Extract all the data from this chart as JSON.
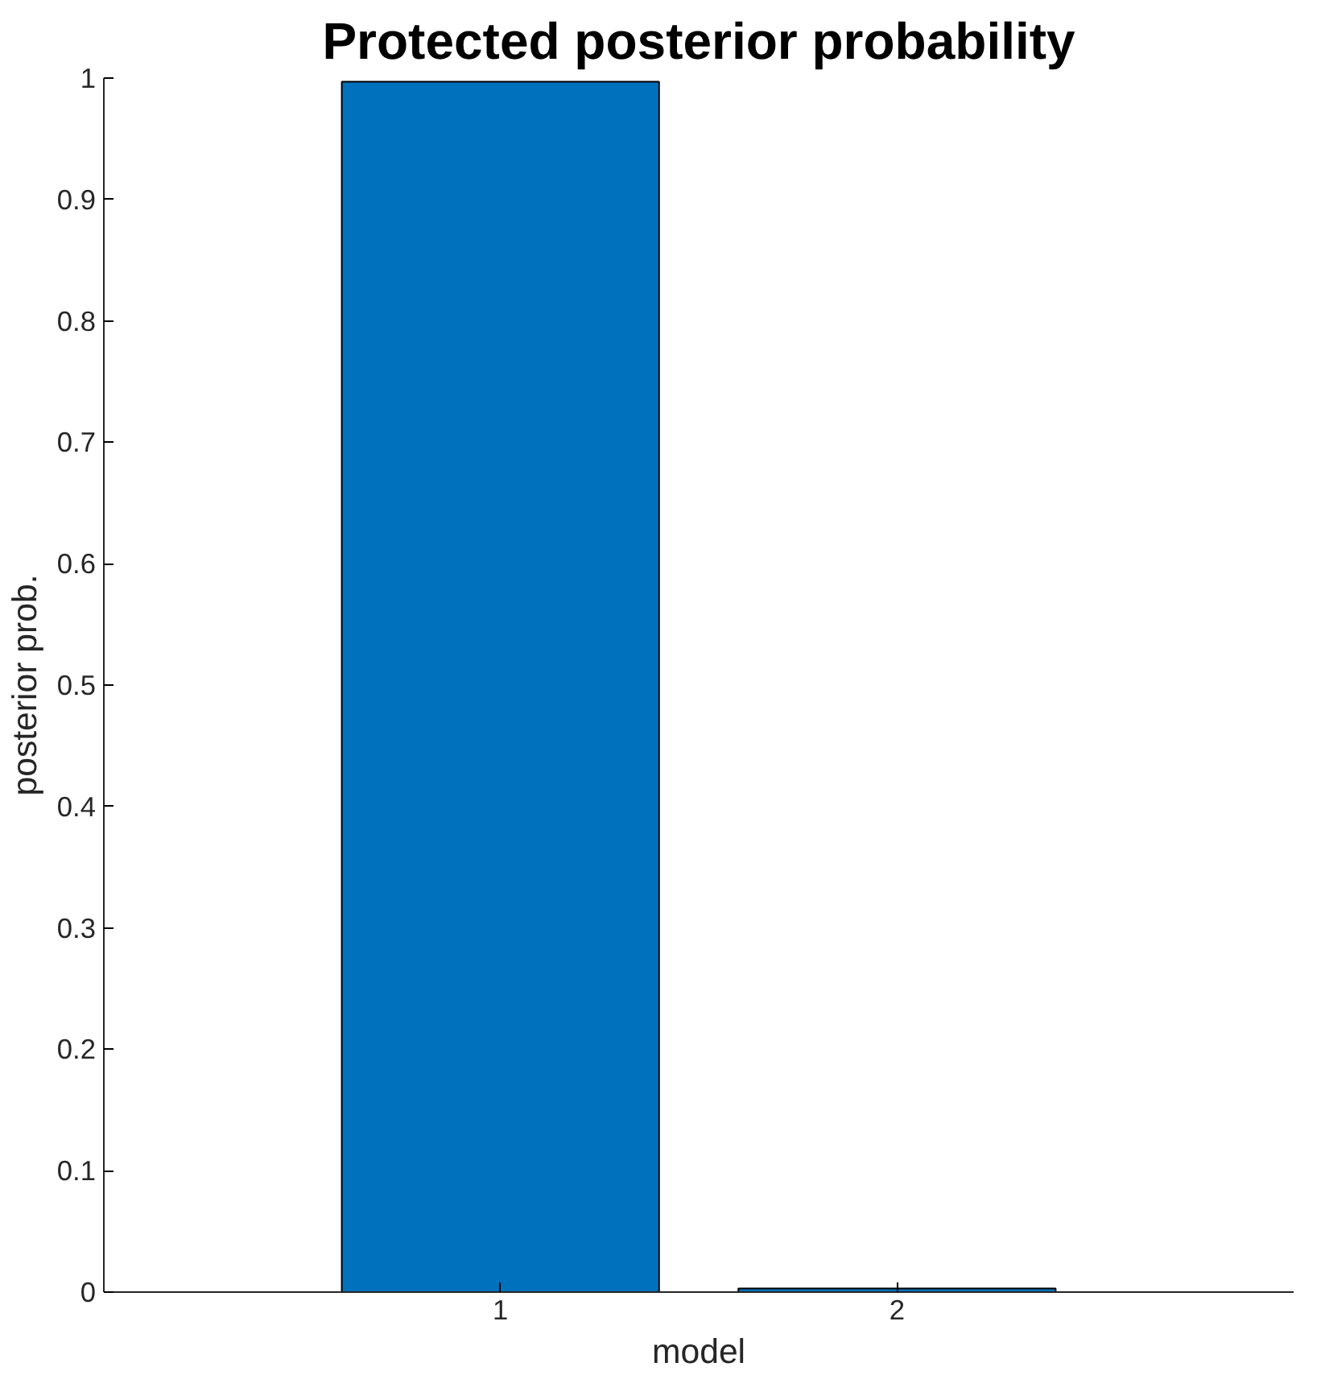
{
  "chart_data": {
    "type": "bar",
    "title": "Protected posterior probability",
    "xlabel": "model",
    "ylabel": "posterior prob.",
    "categories": [
      "1",
      "2"
    ],
    "values": [
      0.997,
      0.003
    ],
    "color": "#0072bd",
    "ylim": [
      0,
      1
    ],
    "yticks": [
      0,
      0.1,
      0.2,
      0.3,
      0.4,
      0.5,
      0.6,
      0.7,
      0.8,
      0.9,
      1
    ],
    "grid": false
  }
}
